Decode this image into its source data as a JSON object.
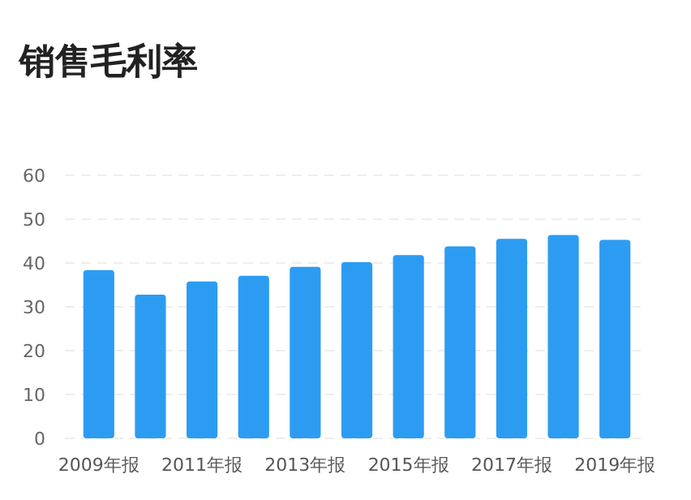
{
  "chart_data": {
    "type": "bar",
    "title": "销售毛利率",
    "categories": [
      "2009年报",
      null,
      "2011年报",
      null,
      "2013年报",
      null,
      "2015年报",
      null,
      "2017年报",
      null,
      "2019年报"
    ],
    "values": [
      38.4,
      32.8,
      35.8,
      37.1,
      39.1,
      40.2,
      41.8,
      43.8,
      45.5,
      46.4,
      45.3
    ],
    "color": "#2c9cf2",
    "ylim": [
      0,
      60
    ],
    "yticks": [
      0,
      10,
      20,
      30,
      40,
      50,
      60
    ],
    "grid": "y"
  }
}
